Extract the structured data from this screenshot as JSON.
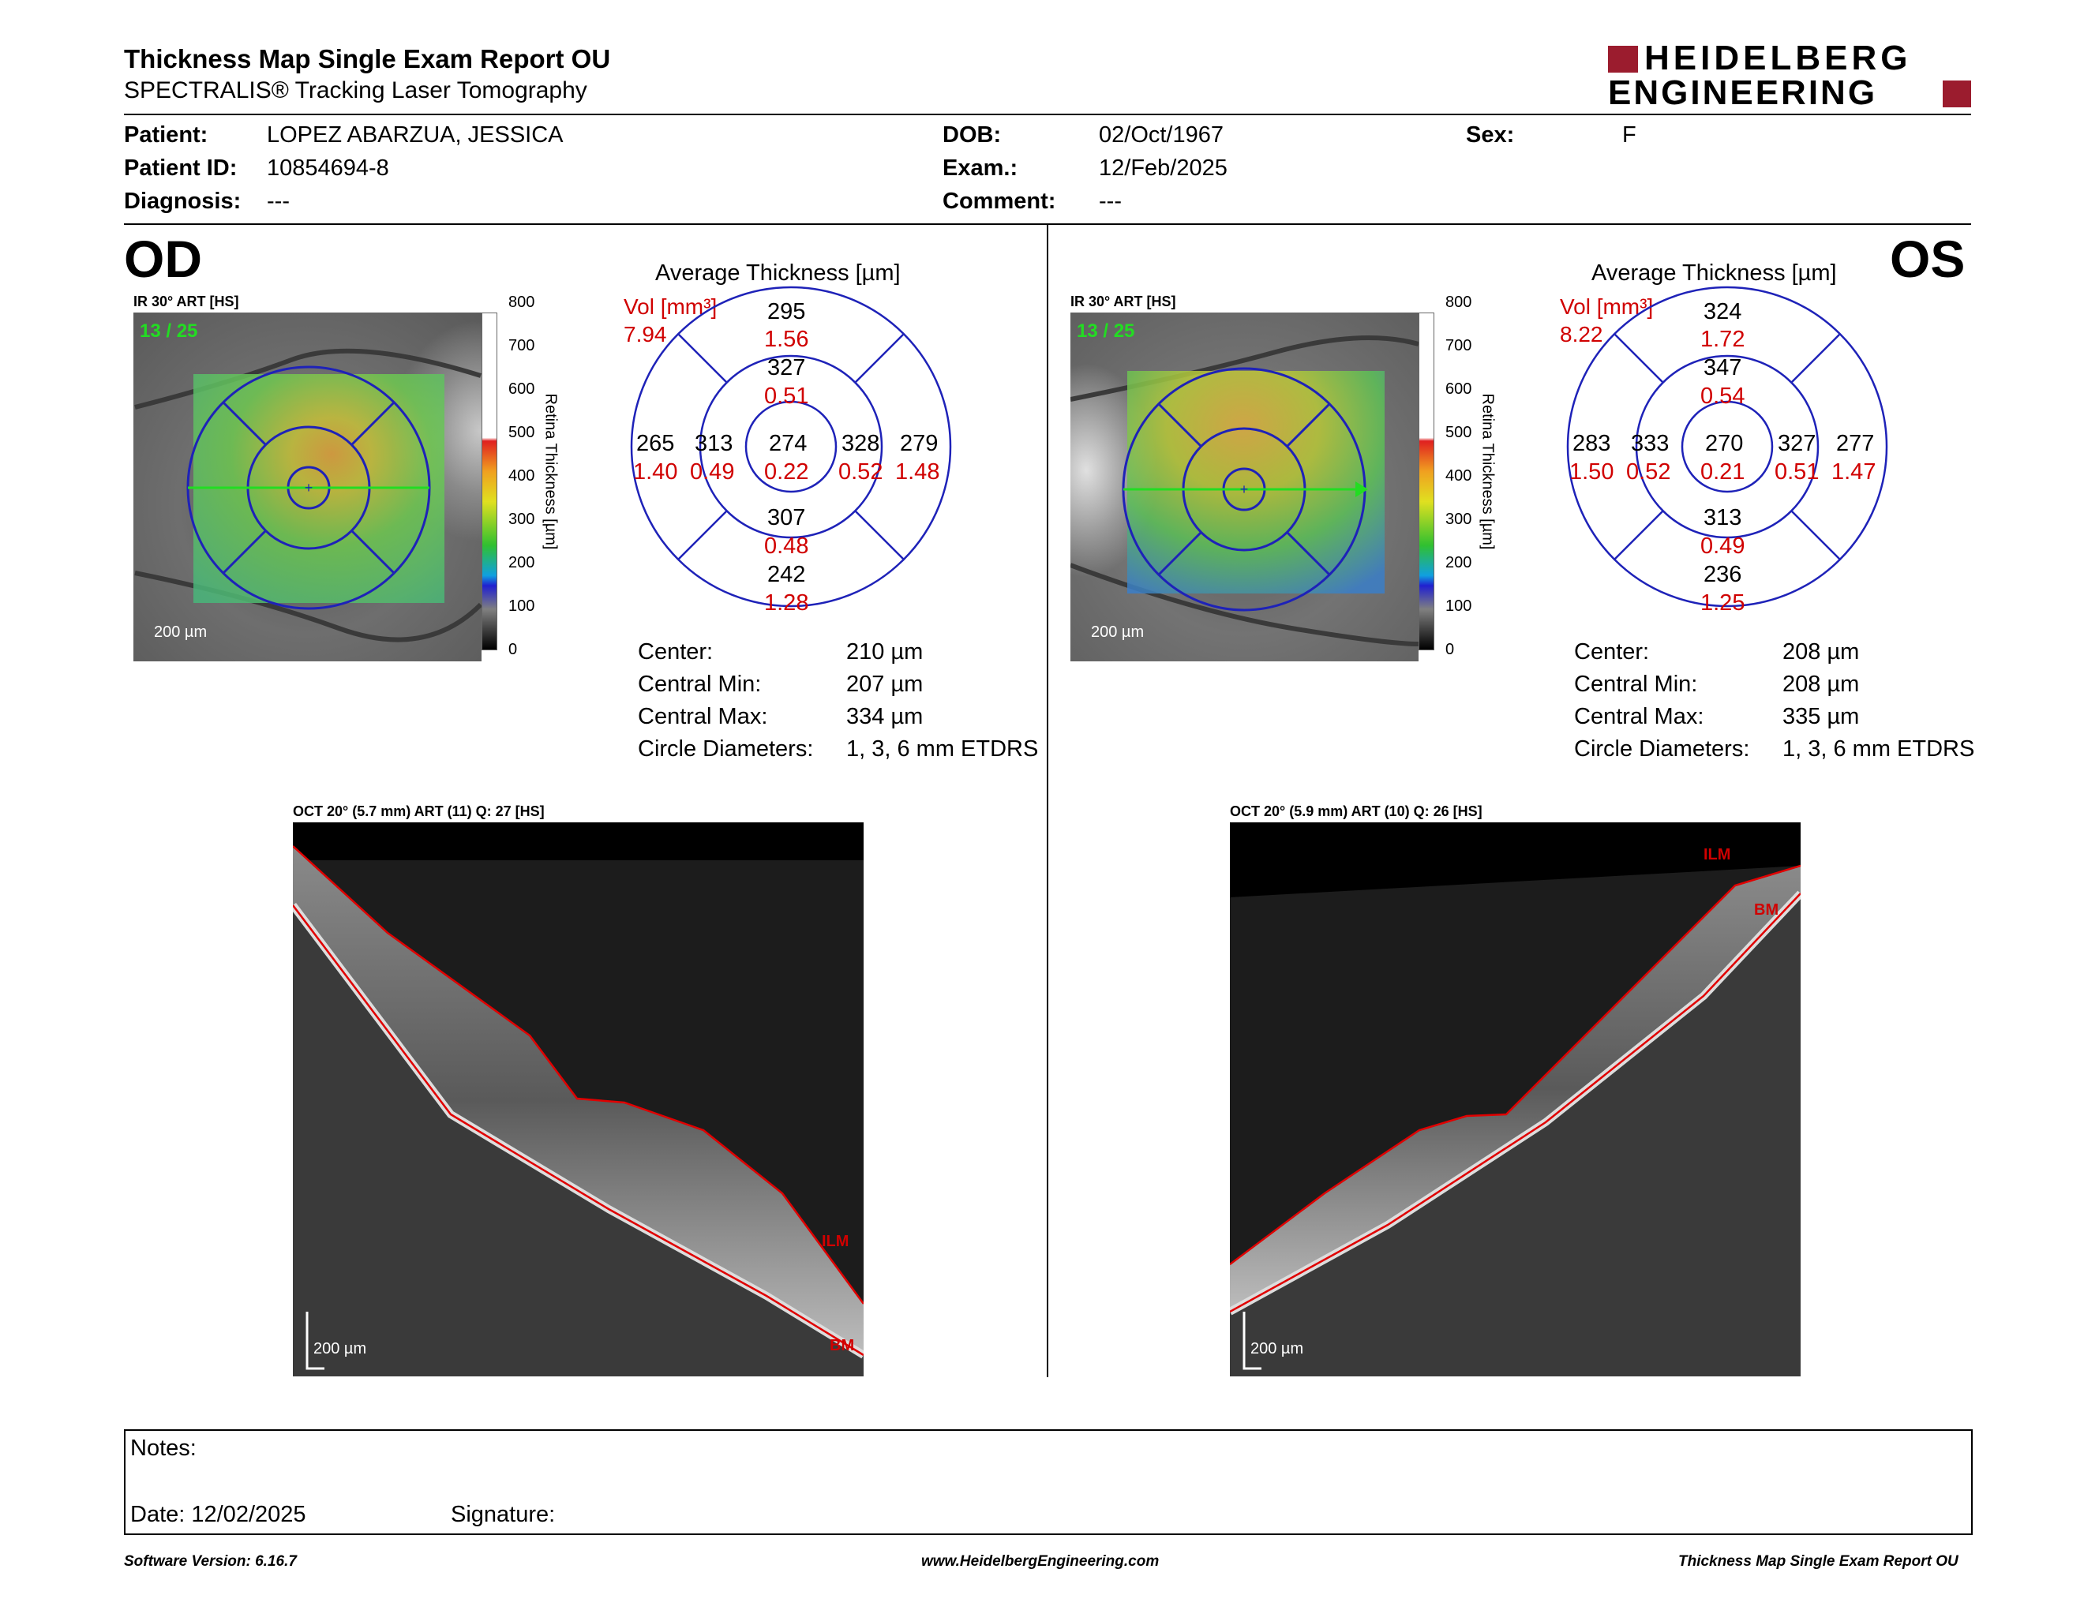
{
  "report": {
    "title": "Thickness Map Single Exam Report OU",
    "subtitle": "SPECTRALIS® Tracking Laser Tomography",
    "logo_top": "HEIDELBERG",
    "logo_bottom": "ENGINEERING"
  },
  "patient": {
    "patient_label": "Patient:",
    "patient_value": "LOPEZ ABARZUA, JESSICA",
    "id_label": "Patient ID:",
    "id_value": "10854694-8",
    "diag_label": "Diagnosis:",
    "diag_value": "---",
    "dob_label": "DOB:",
    "dob_value": "02/Oct/1967",
    "exam_label": "Exam.:",
    "exam_value": "12/Feb/2025",
    "comment_label": "Comment:",
    "comment_value": "---",
    "sex_label": "Sex:",
    "sex_value": "F"
  },
  "scale": {
    "ticks": [
      "800",
      "700",
      "600",
      "500",
      "400",
      "300",
      "200",
      "100",
      "0"
    ],
    "label": "Retina Thickness [µm]"
  },
  "od": {
    "eye": "OD",
    "ir_label": "IR 30° ART [HS]",
    "frames": "13 / 25",
    "scalebar": "200 µm",
    "avg_title": "Average Thickness [µm]",
    "vol_label": "Vol [mm³]",
    "vol_value": "7.94",
    "sectors": {
      "center": {
        "t": "274",
        "v": "0.22"
      },
      "inner_sup": {
        "t": "327",
        "v": "0.51"
      },
      "inner_inf": {
        "t": "307",
        "v": "0.48"
      },
      "inner_left": {
        "t": "313",
        "v": "0.49"
      },
      "inner_right": {
        "t": "328",
        "v": "0.52"
      },
      "outer_sup": {
        "t": "295",
        "v": "1.56"
      },
      "outer_inf": {
        "t": "242",
        "v": "1.28"
      },
      "outer_left": {
        "t": "265",
        "v": "1.40"
      },
      "outer_right": {
        "t": "279",
        "v": "1.48"
      }
    },
    "stats": [
      {
        "label": "Center:",
        "value": "210 µm"
      },
      {
        "label": "Central Min:",
        "value": "207 µm"
      },
      {
        "label": "Central Max:",
        "value": "334 µm"
      },
      {
        "label": "Circle Diameters:",
        "value": "1, 3, 6 mm ETDRS"
      }
    ],
    "oct_label": "OCT 20° (5.7 mm) ART (11) Q: 27 [HS]",
    "oct_ilm": "ILM",
    "oct_bm": "BM",
    "oct_scalebar": "200 µm"
  },
  "os": {
    "eye": "OS",
    "ir_label": "IR 30° ART [HS]",
    "frames": "13 / 25",
    "scalebar": "200 µm",
    "avg_title": "Average Thickness [µm]",
    "vol_label": "Vol [mm³]",
    "vol_value": "8.22",
    "sectors": {
      "center": {
        "t": "270",
        "v": "0.21"
      },
      "inner_sup": {
        "t": "347",
        "v": "0.54"
      },
      "inner_inf": {
        "t": "313",
        "v": "0.49"
      },
      "inner_left": {
        "t": "333",
        "v": "0.52"
      },
      "inner_right": {
        "t": "327",
        "v": "0.51"
      },
      "outer_sup": {
        "t": "324",
        "v": "1.72"
      },
      "outer_inf": {
        "t": "236",
        "v": "1.25"
      },
      "outer_left": {
        "t": "283",
        "v": "1.50"
      },
      "outer_right": {
        "t": "277",
        "v": "1.47"
      }
    },
    "stats": [
      {
        "label": "Center:",
        "value": "208 µm"
      },
      {
        "label": "Central Min:",
        "value": "208 µm"
      },
      {
        "label": "Central Max:",
        "value": "335 µm"
      },
      {
        "label": "Circle Diameters:",
        "value": "1, 3, 6 mm ETDRS"
      }
    ],
    "oct_label": "OCT 20° (5.9 mm) ART (10) Q: 26 [HS]",
    "oct_ilm": "ILM",
    "oct_bm": "BM",
    "oct_scalebar": "200 µm"
  },
  "notes": {
    "notes_label": "Notes:",
    "date_label": "Date: 12/02/2025",
    "signature_label": "Signature:"
  },
  "footer": {
    "left": "Software Version: 6.16.7",
    "center": "www.HeidelbergEngineering.com",
    "right": "Thickness Map Single Exam Report OU"
  },
  "colors": {
    "maroon": "#9b1c2e",
    "etdrs_blue": "#1e22b8",
    "value_red": "#d00000",
    "frames_green": "#22dd22"
  }
}
